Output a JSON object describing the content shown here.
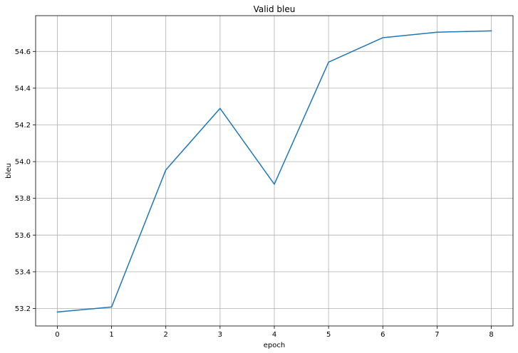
{
  "chart_data": {
    "type": "line",
    "title": "Valid bleu",
    "xlabel": "epoch",
    "ylabel": "bleu",
    "x": [
      0,
      1,
      2,
      3,
      4,
      5,
      6,
      7,
      8
    ],
    "series": [
      {
        "values": [
          53.181,
          53.208,
          53.955,
          54.29,
          53.877,
          54.542,
          54.675,
          54.705,
          54.712
        ],
        "color": "#1f77b4"
      }
    ],
    "xlim": [
      -0.4,
      8.4
    ],
    "ylim": [
      53.105,
      54.795
    ],
    "xticks": [
      0,
      1,
      2,
      3,
      4,
      5,
      6,
      7,
      8
    ],
    "xtick_labels": [
      "0",
      "1",
      "2",
      "3",
      "4",
      "5",
      "6",
      "7",
      "8"
    ],
    "yticks": [
      53.2,
      53.4,
      53.6,
      53.8,
      54.0,
      54.2,
      54.4,
      54.6
    ],
    "ytick_labels": [
      "53.2",
      "53.4",
      "53.6",
      "53.8",
      "54.0",
      "54.2",
      "54.4",
      "54.6"
    ],
    "grid": true
  }
}
